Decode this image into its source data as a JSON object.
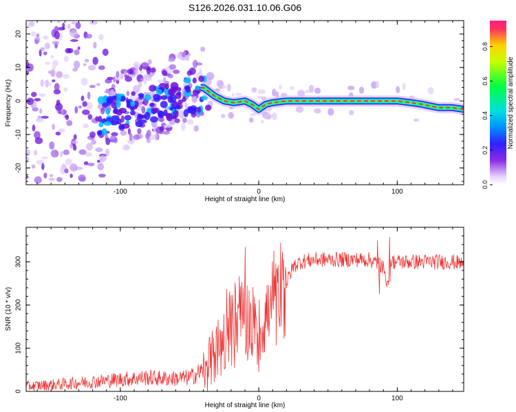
{
  "title": "S126.2026.031.10.06.G06",
  "chart_data": [
    {
      "type": "heatmap",
      "name": "spectrogram",
      "xlabel": "Height of straight line (km)",
      "ylabel": "Frequency (Hz)",
      "xlim": [
        -168,
        148
      ],
      "ylim": [
        -25,
        24
      ],
      "xticks": [
        -100,
        0,
        100
      ],
      "yticks": [
        -20,
        -10,
        0,
        10,
        20
      ],
      "ridge": {
        "description_points_x": [
          -40,
          -32,
          -25,
          -18,
          -10,
          -5,
          0,
          5,
          10,
          20,
          40,
          60,
          80,
          84,
          100,
          110,
          118,
          124,
          130,
          140,
          148
        ],
        "frequency_hz": [
          4,
          1.5,
          0,
          -0.5,
          0,
          -1,
          -2.5,
          -1,
          -0.5,
          0,
          0,
          0,
          0,
          0,
          0,
          -0.5,
          -1,
          -1.5,
          -2,
          -2,
          -2.5
        ]
      },
      "colorbar": {
        "label": "Normalized spectral amplitude",
        "range": [
          0,
          0.95
        ],
        "ticks": [
          0.0,
          0.2,
          0.4,
          0.6,
          0.8
        ]
      }
    },
    {
      "type": "line",
      "name": "snr",
      "xlabel": "Height of straight line (km)",
      "ylabel": "SNR (10 * v/v)",
      "xlim": [
        -168,
        148
      ],
      "ylim": [
        0,
        380
      ],
      "xticks": [
        -100,
        0,
        100
      ],
      "yticks": [
        0,
        100,
        200,
        300
      ],
      "color": "#ee3333",
      "series": {
        "x": [
          -168,
          -150,
          -130,
          -110,
          -100,
          -90,
          -80,
          -70,
          -60,
          -50,
          -45,
          -40,
          -35,
          -30,
          -25,
          -20,
          -15,
          -10,
          -5,
          0,
          5,
          10,
          15,
          20,
          25,
          30,
          40,
          60,
          80,
          90,
          92,
          95,
          100,
          120,
          140,
          148
        ],
        "y": [
          12,
          15,
          20,
          25,
          28,
          30,
          32,
          30,
          30,
          32,
          40,
          50,
          70,
          90,
          120,
          140,
          160,
          175,
          160,
          130,
          180,
          200,
          190,
          250,
          290,
          300,
          305,
          305,
          305,
          290,
          240,
          300,
          300,
          300,
          300,
          295
        ]
      }
    }
  ]
}
